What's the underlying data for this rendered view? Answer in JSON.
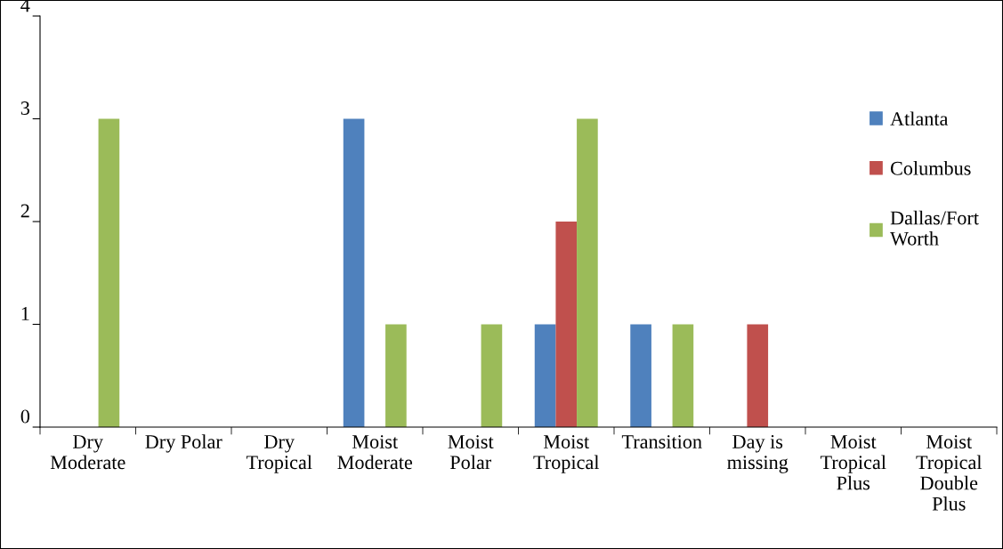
{
  "chart_data": {
    "type": "bar",
    "categories": [
      "Dry Moderate",
      "Dry Polar",
      "Dry Tropical",
      "Moist Moderate",
      "Moist Polar",
      "Moist Tropical",
      "Transition",
      "Day is missing",
      "Moist Tropical Plus",
      "Moist Tropical Double Plus"
    ],
    "series": [
      {
        "name": "Atlanta",
        "color": "#4f81bd",
        "values": [
          0,
          0,
          0,
          3,
          0,
          1,
          1,
          0,
          0,
          0
        ]
      },
      {
        "name": "Columbus",
        "color": "#c0504d",
        "values": [
          0,
          0,
          0,
          0,
          0,
          2,
          0,
          1,
          0,
          0
        ]
      },
      {
        "name": "Dallas/Fort Worth",
        "color": "#9bbb59",
        "values": [
          3,
          0,
          0,
          1,
          1,
          3,
          1,
          0,
          0,
          0
        ]
      }
    ],
    "ylim": [
      0,
      4
    ],
    "yticks": [
      0,
      1,
      2,
      3,
      4
    ],
    "grid": false,
    "legend": "right"
  }
}
